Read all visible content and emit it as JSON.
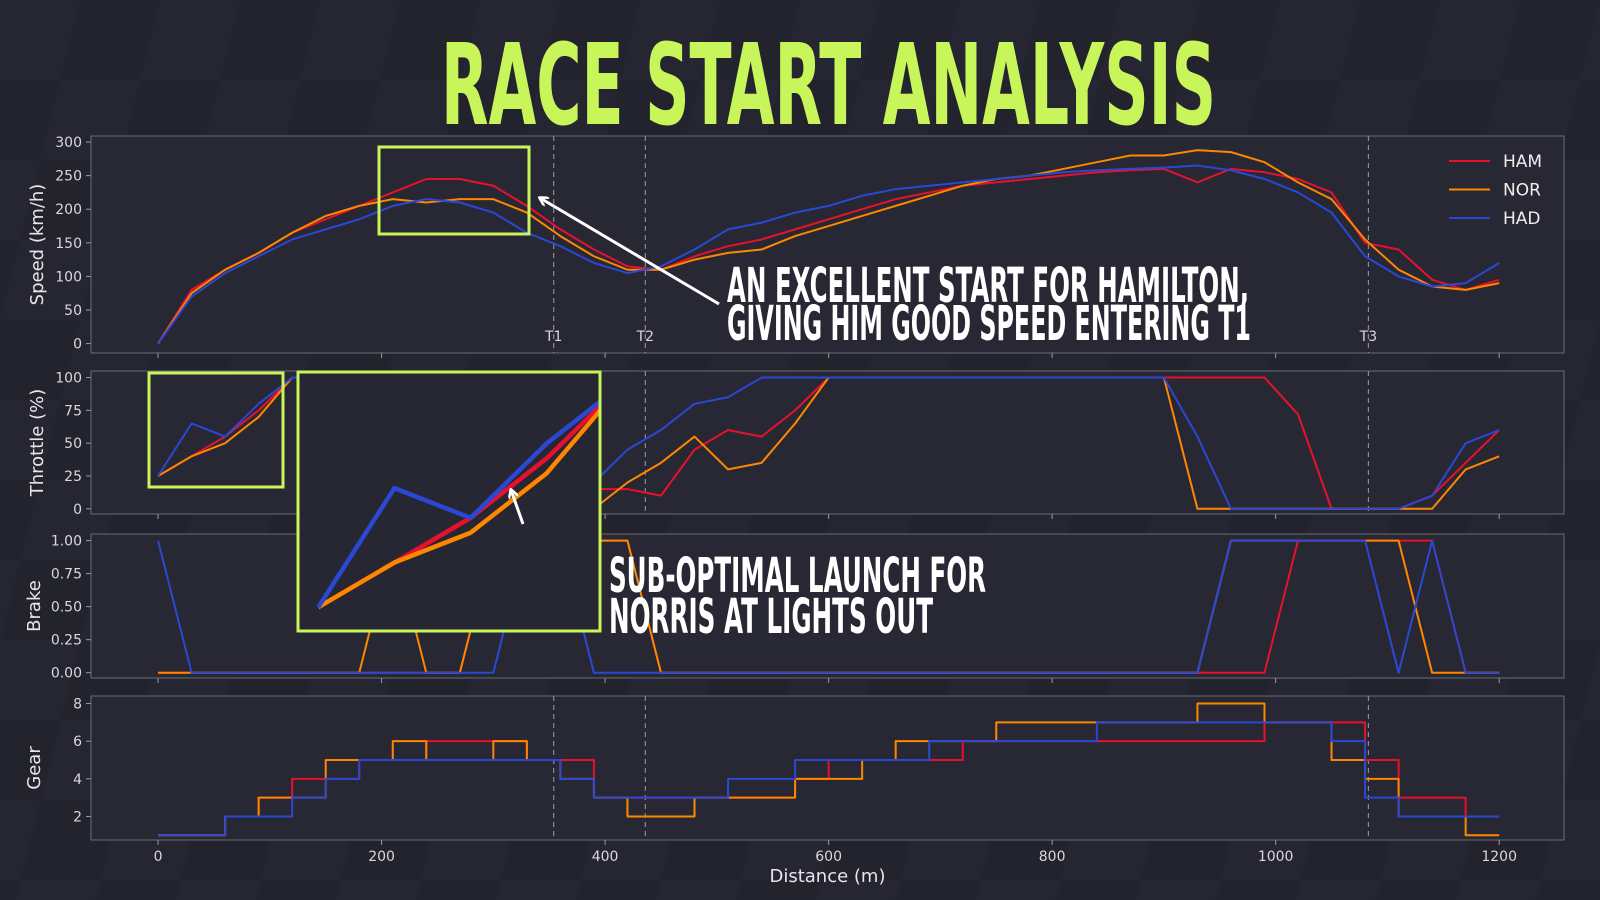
{
  "title": "RACE START ANALYSIS",
  "chart_data": [
    {
      "type": "line",
      "ylabel": "Speed (km/h)",
      "xlim": [
        -60,
        1258
      ],
      "ylim": [
        -14,
        309
      ],
      "yticks": [
        0,
        50,
        100,
        150,
        200,
        250,
        300
      ],
      "legend": "upper right",
      "turn_lines": true,
      "vlines": [
        {
          "value": 354,
          "label": "T1"
        },
        {
          "value": 436,
          "label": "T2"
        },
        {
          "value": 1083,
          "label": "T3"
        }
      ],
      "annotation": [
        "AN EXCELLENT START FOR HAMILTON,",
        "GIVING HIM GOOD SPEED ENTERING T1"
      ],
      "x": [
        0,
        30,
        60,
        90,
        120,
        150,
        180,
        210,
        240,
        270,
        300,
        330,
        360,
        390,
        420,
        450,
        480,
        510,
        540,
        570,
        600,
        630,
        660,
        690,
        720,
        750,
        780,
        810,
        840,
        870,
        900,
        930,
        960,
        990,
        1020,
        1050,
        1080,
        1110,
        1140,
        1170,
        1200
      ],
      "series": [
        {
          "name": "HAM",
          "color": "#e8112d",
          "values": [
            0,
            80,
            110,
            135,
            165,
            185,
            205,
            225,
            245,
            245,
            235,
            205,
            170,
            140,
            115,
            110,
            130,
            145,
            155,
            170,
            185,
            200,
            215,
            225,
            235,
            240,
            245,
            250,
            255,
            258,
            260,
            240,
            260,
            255,
            245,
            225,
            150,
            140,
            95,
            80,
            95
          ]
        },
        {
          "name": "NOR",
          "color": "#ff8700",
          "values": [
            0,
            75,
            110,
            135,
            165,
            190,
            205,
            215,
            210,
            215,
            215,
            195,
            160,
            130,
            110,
            110,
            125,
            135,
            140,
            160,
            175,
            190,
            205,
            220,
            235,
            245,
            250,
            260,
            270,
            280,
            280,
            288,
            285,
            270,
            240,
            215,
            155,
            110,
            85,
            80,
            90
          ]
        },
        {
          "name": "HAD",
          "color": "#2a48d4",
          "values": [
            0,
            70,
            105,
            130,
            155,
            170,
            185,
            205,
            215,
            210,
            195,
            165,
            145,
            120,
            105,
            115,
            140,
            170,
            180,
            195,
            205,
            220,
            230,
            235,
            240,
            245,
            250,
            255,
            258,
            260,
            262,
            265,
            258,
            245,
            225,
            195,
            130,
            100,
            85,
            90,
            120
          ]
        }
      ]
    },
    {
      "type": "line",
      "ylabel": "Throttle (%)",
      "xlim": [
        -60,
        1258
      ],
      "ylim": [
        -4,
        105
      ],
      "yticks": [
        0,
        25,
        50,
        75,
        100
      ],
      "turn_lines": true,
      "annotation": [
        "SUB-OPTIMAL LAUNCH FOR",
        "NORRIS AT LIGHTS OUT"
      ],
      "x": [
        0,
        30,
        60,
        90,
        120,
        150,
        180,
        210,
        240,
        270,
        300,
        330,
        360,
        390,
        420,
        450,
        480,
        510,
        540,
        570,
        600,
        630,
        660,
        690,
        720,
        750,
        780,
        810,
        840,
        870,
        900,
        930,
        960,
        990,
        1020,
        1050,
        1080,
        1110,
        1140,
        1170,
        1200
      ],
      "series": [
        {
          "color": "#e8112d",
          "values": [
            25,
            40,
            55,
            75,
            100,
            100,
            100,
            100,
            100,
            100,
            100,
            60,
            20,
            15,
            15,
            10,
            45,
            60,
            55,
            75,
            100,
            100,
            100,
            100,
            100,
            100,
            100,
            100,
            100,
            100,
            100,
            100,
            100,
            100,
            72,
            0,
            0,
            0,
            10,
            35,
            60
          ]
        },
        {
          "color": "#ff8700",
          "values": [
            25,
            40,
            50,
            70,
            100,
            100,
            100,
            100,
            100,
            100,
            100,
            50,
            10,
            0,
            20,
            35,
            55,
            30,
            35,
            65,
            100,
            100,
            100,
            100,
            100,
            100,
            100,
            100,
            100,
            100,
            100,
            0,
            0,
            0,
            0,
            0,
            0,
            0,
            0,
            30,
            40
          ]
        },
        {
          "color": "#2a48d4",
          "values": [
            25,
            65,
            55,
            80,
            100,
            100,
            100,
            100,
            100,
            100,
            100,
            40,
            10,
            20,
            45,
            60,
            80,
            85,
            100,
            100,
            100,
            100,
            100,
            100,
            100,
            100,
            100,
            100,
            100,
            100,
            100,
            55,
            0,
            0,
            0,
            0,
            0,
            0,
            10,
            50,
            60
          ]
        }
      ]
    },
    {
      "type": "line",
      "ylabel": "Brake",
      "xlim": [
        -60,
        1258
      ],
      "ylim": [
        -0.04,
        1.05
      ],
      "turn_lines": false,
      "yticks": [
        {
          "value": 0,
          "label": "0.00"
        },
        {
          "value": 0.25,
          "label": "0.25"
        },
        {
          "value": 0.5,
          "label": "0.50"
        },
        {
          "value": 0.75,
          "label": "0.75"
        },
        {
          "value": 1,
          "label": "1.00"
        }
      ],
      "x": [
        0,
        30,
        60,
        90,
        120,
        150,
        180,
        210,
        240,
        270,
        300,
        330,
        360,
        390,
        420,
        450,
        480,
        510,
        540,
        570,
        600,
        630,
        660,
        690,
        720,
        750,
        780,
        810,
        840,
        870,
        900,
        930,
        960,
        990,
        1020,
        1050,
        1080,
        1110,
        1140,
        1170,
        1200
      ],
      "series": [
        {
          "color": "#e8112d",
          "values": [
            0,
            0,
            0,
            0,
            0,
            0,
            0,
            0,
            0,
            0,
            1,
            1,
            1,
            1,
            1,
            0,
            0,
            0,
            0,
            0,
            0,
            0,
            0,
            0,
            0,
            0,
            0,
            0,
            0,
            0,
            0,
            0,
            0,
            0,
            1,
            1,
            1,
            1,
            1,
            0,
            0
          ]
        },
        {
          "color": "#ff8700",
          "values": [
            0,
            0,
            0,
            0,
            0,
            0,
            0,
            1,
            0,
            0,
            1,
            1,
            1,
            1,
            1,
            0,
            0,
            0,
            0,
            0,
            0,
            0,
            0,
            0,
            0,
            0,
            0,
            0,
            0,
            0,
            0,
            0,
            1,
            1,
            1,
            1,
            1,
            1,
            0,
            0,
            0
          ]
        },
        {
          "color": "#2a48d4",
          "values": [
            1,
            0,
            0,
            0,
            0,
            0,
            0,
            0,
            0,
            0,
            0,
            1,
            1,
            0,
            0,
            0,
            0,
            0,
            0,
            0,
            0,
            0,
            0,
            0,
            0,
            0,
            0,
            0,
            0,
            0,
            0,
            0,
            1,
            1,
            1,
            1,
            1,
            0,
            1,
            0,
            0
          ]
        }
      ]
    },
    {
      "type": "line",
      "drawstyle": "steps-post",
      "ylabel": "Gear",
      "xlabel": "Distance (m)",
      "xlim": [
        -60,
        1258
      ],
      "ylim": [
        0.75,
        8.4
      ],
      "xticks": [
        0,
        200,
        400,
        600,
        800,
        1000,
        1200
      ],
      "yticks": [
        2,
        4,
        6,
        8
      ],
      "turn_lines": true,
      "x": [
        0,
        30,
        60,
        90,
        120,
        150,
        180,
        210,
        240,
        270,
        300,
        330,
        360,
        390,
        420,
        450,
        480,
        510,
        540,
        570,
        600,
        630,
        660,
        690,
        720,
        750,
        780,
        810,
        840,
        870,
        900,
        930,
        960,
        990,
        1020,
        1050,
        1080,
        1110,
        1140,
        1170,
        1200
      ],
      "series": [
        {
          "color": "#e8112d",
          "values": [
            1,
            1,
            2,
            3,
            4,
            4,
            5,
            5,
            6,
            6,
            6,
            5,
            5,
            3,
            3,
            3,
            3,
            3,
            3,
            4,
            5,
            5,
            5,
            5,
            6,
            6,
            6,
            6,
            6,
            6,
            6,
            6,
            6,
            7,
            7,
            7,
            5,
            3,
            3,
            2,
            2
          ]
        },
        {
          "color": "#ff8700",
          "values": [
            1,
            1,
            2,
            3,
            3,
            5,
            5,
            6,
            5,
            5,
            6,
            5,
            4,
            3,
            2,
            2,
            3,
            3,
            3,
            4,
            4,
            5,
            6,
            6,
            6,
            7,
            7,
            7,
            7,
            7,
            7,
            8,
            8,
            7,
            7,
            5,
            4,
            2,
            2,
            1,
            1
          ]
        },
        {
          "color": "#2a48d4",
          "values": [
            1,
            1,
            2,
            2,
            3,
            4,
            5,
            5,
            5,
            5,
            5,
            5,
            4,
            3,
            3,
            3,
            3,
            4,
            4,
            5,
            5,
            5,
            5,
            6,
            6,
            6,
            6,
            6,
            7,
            7,
            7,
            7,
            7,
            7,
            7,
            6,
            3,
            2,
            2,
            2,
            2
          ]
        }
      ]
    }
  ]
}
